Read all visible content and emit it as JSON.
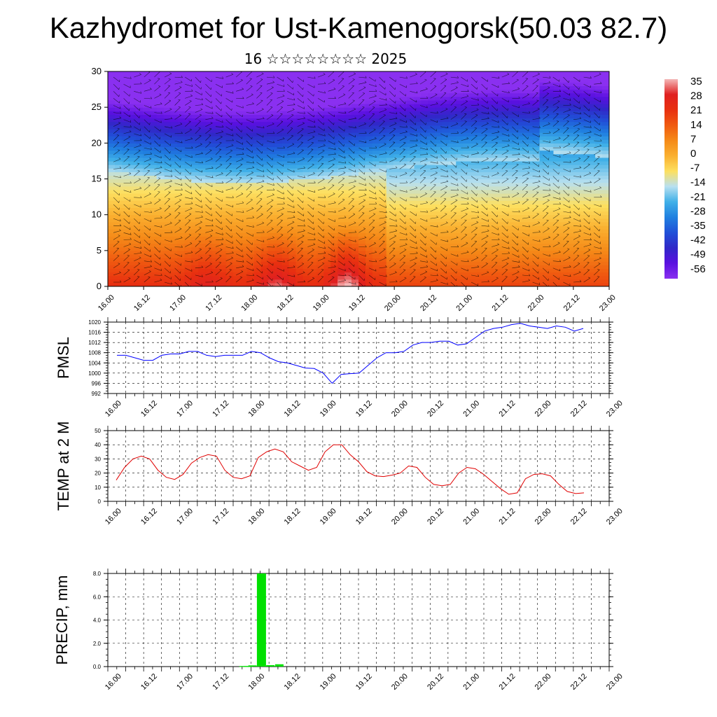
{
  "header": {
    "title": "Kazhydromet for Ust-Kamenogorsk(50.03 82.7)",
    "subtitle": "16 ☆☆☆☆☆☆☆☆ 2025"
  },
  "time_labels": [
    "16.00",
    "16.12",
    "17.00",
    "17.12",
    "18.00",
    "18.12",
    "19.00",
    "19.12",
    "20.00",
    "20.12",
    "21.00",
    "21.12",
    "22.00",
    "22.12",
    "23.00"
  ],
  "chart_data": [
    {
      "id": "vertical-section",
      "type": "heatmap",
      "ylim": [
        0,
        30
      ],
      "yticks": [
        0,
        5,
        10,
        15,
        20,
        25,
        30
      ],
      "colorbar": {
        "labels": [
          "35",
          "28",
          "21",
          "14",
          "7",
          "0",
          "-7",
          "-14",
          "-21",
          "-28",
          "-35",
          "-42",
          "-49",
          "-56"
        ],
        "colors": [
          "#f4b8b8",
          "#e02020",
          "#e83010",
          "#f05a10",
          "#f58a18",
          "#fab030",
          "#fde060",
          "#b8e0f0",
          "#40b0e8",
          "#2080e0",
          "#2050d8",
          "#3028c8",
          "#5a10e0",
          "#8a30f0"
        ]
      }
    },
    {
      "id": "pmsl",
      "type": "line",
      "ylabel": "PMSL",
      "ylim": [
        992,
        1020
      ],
      "yticks": [
        "992",
        "996",
        "1000",
        "1004",
        "1008",
        "1012",
        "1016",
        "1020"
      ],
      "color": "#0000ff",
      "values": [
        1007,
        1007,
        1006,
        1005,
        1005,
        1007,
        1007.5,
        1007.5,
        1008.5,
        1008.5,
        1007,
        1006.5,
        1007,
        1007,
        1007,
        1008.5,
        1008,
        1006,
        1004.5,
        1004,
        1003,
        1002,
        1001.8,
        1000,
        996,
        999.5,
        999.8,
        1000,
        1003,
        1006,
        1008,
        1008,
        1008.5,
        1011,
        1012,
        1012,
        1012.5,
        1012.5,
        1011,
        1011.5,
        1014,
        1016.5,
        1017.5,
        1018,
        1019,
        1019.5,
        1018.5,
        1018,
        1017.5,
        1018.5,
        1018,
        1016.5,
        1017.5
      ]
    },
    {
      "id": "temp2m",
      "type": "line",
      "ylabel": "TEMP at 2 M",
      "ylim": [
        0,
        50
      ],
      "yticks": [
        "0",
        "10",
        "20",
        "30",
        "40",
        "50"
      ],
      "color": "#e00000",
      "values": [
        15,
        24,
        30,
        32,
        30,
        22,
        17,
        15.5,
        19,
        27,
        31,
        33,
        32,
        22,
        17,
        16,
        18,
        31,
        35,
        37,
        35,
        28,
        25,
        22,
        24,
        35,
        40,
        40,
        33,
        28,
        21,
        18,
        17.5,
        18.5,
        20,
        25,
        24,
        17,
        12,
        11,
        12,
        20,
        24,
        23,
        19,
        14,
        9,
        5,
        6,
        16,
        19,
        19.5,
        18,
        12,
        7,
        5.5,
        6
      ]
    },
    {
      "id": "precip",
      "type": "bar",
      "ylabel": "PRECIP, mm",
      "ylim": [
        0,
        8
      ],
      "yticks": [
        "0.0",
        "2.0",
        "4.0",
        "6.0",
        "8.0"
      ],
      "color": "#00e000",
      "bars": [
        {
          "t": 45.0,
          "value": 0.05
        },
        {
          "t": 46.5,
          "value": 0.05
        },
        {
          "t": 48.0,
          "value": 0.1
        },
        {
          "t": 51.0,
          "value": 8.0
        },
        {
          "t": 54.0,
          "value": 0.12
        },
        {
          "t": 57.0,
          "value": 0.2
        }
      ]
    }
  ]
}
